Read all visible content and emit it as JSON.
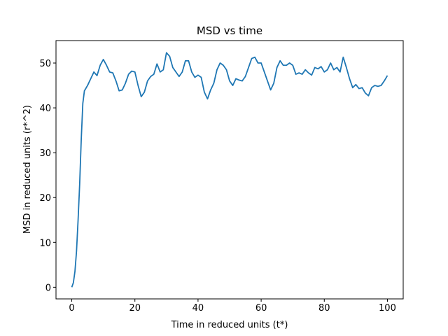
{
  "chart_data": {
    "type": "line",
    "title": "MSD vs time",
    "x_label": "Time in reduced units (t*)",
    "y_label": "MSD in reduced units (r*^2)",
    "x": [
      0,
      0.5,
      1,
      1.5,
      2,
      2.5,
      3,
      3.5,
      4,
      5,
      6,
      7,
      8,
      9,
      10,
      11,
      12,
      13,
      14,
      15,
      16,
      17,
      18,
      19,
      20,
      21,
      22,
      23,
      24,
      25,
      26,
      27,
      28,
      29,
      30,
      31,
      32,
      33,
      34,
      35,
      36,
      37,
      38,
      39,
      40,
      41,
      42,
      43,
      44,
      45,
      46,
      47,
      48,
      49,
      50,
      51,
      52,
      53,
      54,
      55,
      56,
      57,
      58,
      59,
      60,
      61,
      62,
      63,
      64,
      65,
      66,
      67,
      68,
      69,
      70,
      71,
      72,
      73,
      74,
      75,
      76,
      77,
      78,
      79,
      80,
      81,
      82,
      83,
      84,
      85,
      86,
      87,
      88,
      89,
      90,
      91,
      92,
      93,
      94,
      95,
      96,
      97,
      98,
      99,
      100
    ],
    "series": [
      {
        "name": "MSD",
        "color": "#1f77b4",
        "values": [
          0,
          1,
          3.5,
          8,
          15,
          23,
          33,
          41,
          43.8,
          45,
          46.5,
          48,
          47.2,
          49.5,
          50.8,
          49.5,
          48,
          47.8,
          46,
          43.8,
          44,
          45.5,
          47.5,
          48.2,
          48,
          45,
          42.5,
          43.5,
          46,
          47,
          47.5,
          49.8,
          48,
          48.5,
          52.3,
          51.5,
          49,
          48,
          47,
          48,
          50.5,
          50.5,
          48,
          46.8,
          47.3,
          46.8,
          43.5,
          42,
          44,
          45.5,
          48.5,
          50,
          49.5,
          48.5,
          46,
          45,
          46.5,
          46.2,
          46,
          47,
          49,
          51,
          51.3,
          50,
          50,
          48,
          46,
          44,
          45.5,
          49,
          50.5,
          49.5,
          49.5,
          50,
          49.5,
          47.5,
          47.8,
          47.5,
          48.5,
          47.8,
          47.3,
          49,
          48.7,
          49.2,
          48,
          48.5,
          50,
          48.5,
          49,
          48,
          51.3,
          49,
          46.5,
          44.5,
          45.2,
          44.3,
          44.5,
          43.3,
          42.7,
          44.5,
          45,
          44.8,
          45,
          46,
          47.2
        ]
      }
    ],
    "xlim": [
      -5,
      105
    ],
    "xticks": [
      0,
      20,
      40,
      60,
      80,
      100
    ],
    "ylim": [
      -2.6,
      55
    ],
    "yticks": [
      0,
      10,
      20,
      30,
      40,
      50
    ],
    "grid": false
  }
}
